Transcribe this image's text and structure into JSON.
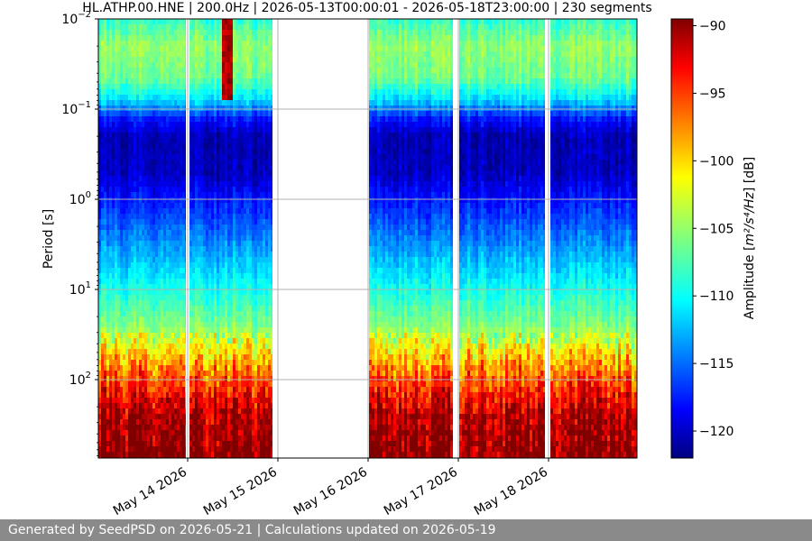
{
  "chart_data": {
    "type": "heatmap",
    "title": "HL.ATHP.00.HNE | 200.0Hz | 2026-05-13T00:00:01 - 2026-05-18T23:00:00 | 230 segments",
    "ylabel": "Period [s]",
    "y_scale": "log",
    "y_inverted": true,
    "ylim": [
      0.01,
      700
    ],
    "y_ticks": [
      {
        "value": 0.01,
        "base": "10",
        "exp": "−2"
      },
      {
        "value": 0.1,
        "base": "10",
        "exp": "−1"
      },
      {
        "value": 1,
        "base": "10",
        "exp": "0"
      },
      {
        "value": 10,
        "base": "10",
        "exp": "1"
      },
      {
        "value": 100,
        "base": "10",
        "exp": "2"
      }
    ],
    "x_ticks": [
      "May 14 2026",
      "May 15 2026",
      "May 16 2026",
      "May 17 2026",
      "May 18 2026"
    ],
    "grid": true,
    "colormap": "jet",
    "colorbar": {
      "label_prefix": "Amplitude [",
      "label_units": "m²/s⁴/Hz",
      "label_suffix": "] [dB]",
      "range": [
        -122,
        -89.5
      ],
      "ticks": [
        "−90",
        "−95",
        "−100",
        "−105",
        "−110",
        "−115",
        "−120"
      ],
      "tick_values": [
        -90,
        -95,
        -100,
        -105,
        -110,
        -115,
        -120
      ]
    },
    "data_gaps": [
      "May 15 2026 – May 16 2026"
    ],
    "notable_event": "high amplitude burst near May 14 2026 at short periods (~0.01–0.05 s)"
  },
  "footer": {
    "text": "Generated by SeedPSD on 2026-05-21 | Calculations updated on 2026-05-19"
  }
}
